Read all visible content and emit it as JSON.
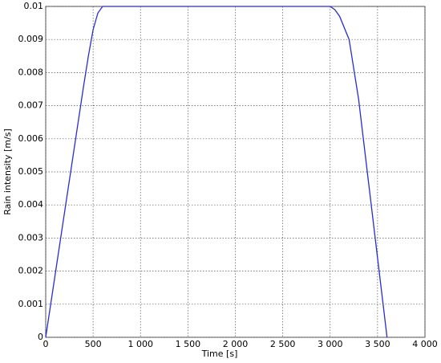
{
  "chart_data": {
    "type": "line",
    "x_label": "Time [s]",
    "y_label": "Rain intensity [m/s]",
    "x": [
      0,
      100,
      200,
      300,
      400,
      450,
      500,
      550,
      600,
      3000,
      3050,
      3100,
      3200,
      3300,
      3400,
      3500,
      3600
    ],
    "series": [
      {
        "name": "Rain intensity",
        "color": "#2b2bd6",
        "values": [
          0,
          0.0019,
          0.0038,
          0.0057,
          0.0076,
          0.0085,
          0.0093,
          0.0098,
          0.01,
          0.01,
          0.0099,
          0.0097,
          0.009,
          0.0072,
          0.0048,
          0.0024,
          0
        ]
      }
    ],
    "xlim": [
      0,
      4000
    ],
    "ylim": [
      0,
      0.01
    ],
    "xticks": [
      0,
      500,
      {
        "value": 1000,
        "label": "1 000"
      },
      {
        "value": 1500,
        "label": "1 500"
      },
      {
        "value": 2000,
        "label": "2 000"
      },
      {
        "value": 2500,
        "label": "2 500"
      },
      {
        "value": 3000,
        "label": "3 000"
      },
      {
        "value": 3500,
        "label": "3 500"
      },
      {
        "value": 4000,
        "label": "4 000"
      }
    ],
    "yticks": [
      0,
      0.001,
      0.002,
      0.003,
      0.004,
      0.005,
      0.006,
      0.007,
      0.008,
      0.009,
      0.01
    ],
    "grid": true
  }
}
